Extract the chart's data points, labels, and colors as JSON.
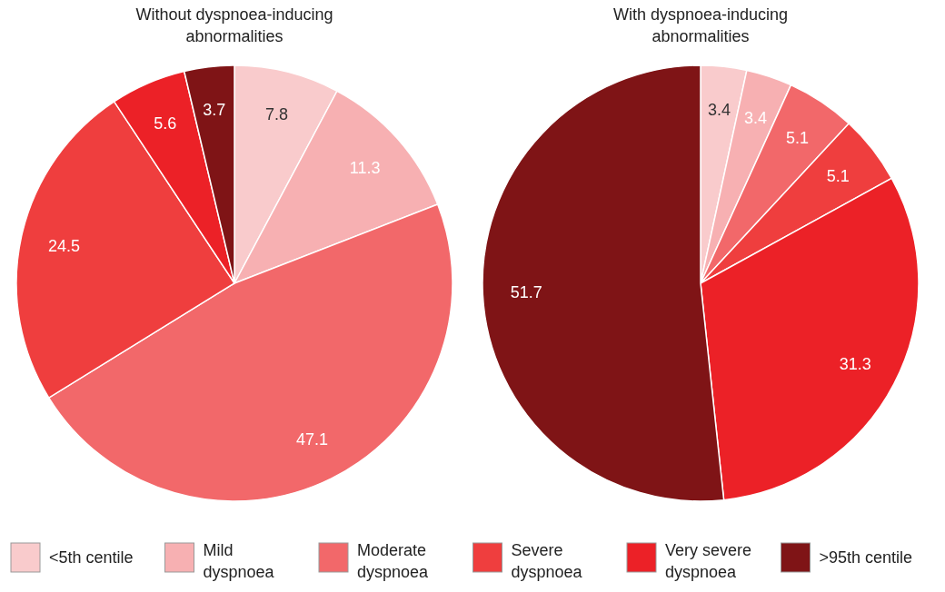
{
  "chart_data": {
    "type": "pie",
    "categories": [
      "<5th centile",
      "Mild dyspnoea",
      "Moderate dyspnoea",
      "Severe dyspnoea",
      "Very severe dyspnoea",
      ">95th centile"
    ],
    "colors": [
      "#f9cbcc",
      "#f7b0b2",
      "#f2686a",
      "#ef3e3e",
      "#ec2127",
      "#7f1416"
    ],
    "data_labels": true,
    "legend": "bottom",
    "series": [
      {
        "name": "Without dyspnoea-inducing abnormalities",
        "values": [
          7.8,
          11.3,
          47.1,
          24.5,
          5.6,
          3.7
        ]
      },
      {
        "name": "With dyspnoea-inducing abnormalities",
        "values": [
          3.4,
          3.4,
          5.1,
          5.1,
          31.3,
          51.7
        ]
      }
    ]
  }
}
